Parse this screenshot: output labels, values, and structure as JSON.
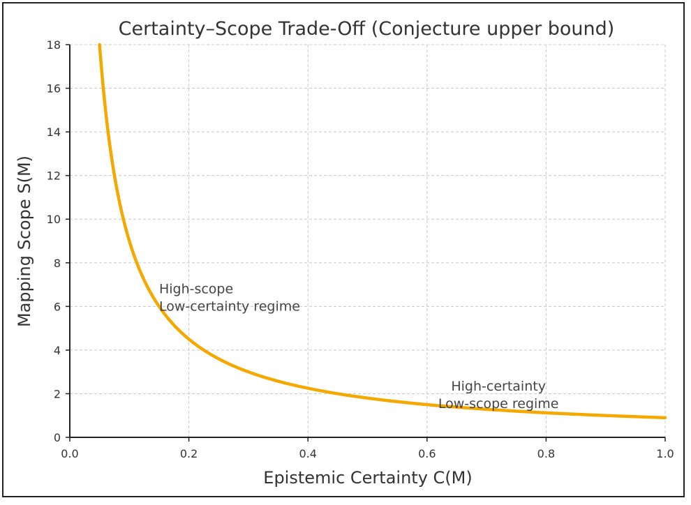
{
  "chart_data": {
    "type": "line",
    "title": "Certainty–Scope Trade-Off (Conjecture upper bound)",
    "xlabel": "Epistemic Certainty  C(M)",
    "ylabel": "Mapping Scope  S(M)",
    "xlim": [
      0.0,
      1.0
    ],
    "ylim": [
      0,
      18
    ],
    "x_ticks": [
      "0.0",
      "0.2",
      "0.4",
      "0.6",
      "0.8",
      "1.0"
    ],
    "y_ticks": [
      "0",
      "2",
      "4",
      "6",
      "8",
      "10",
      "12",
      "14",
      "16",
      "18"
    ],
    "grid": true,
    "series": [
      {
        "color": "#f5a800",
        "x": [
          0.05,
          0.06,
          0.07,
          0.08,
          0.1,
          0.12,
          0.15,
          0.2,
          0.25,
          0.3,
          0.4,
          0.5,
          0.6,
          0.7,
          0.8,
          0.9,
          1.0
        ],
        "y": [
          18.0,
          15.0,
          12.86,
          11.25,
          9.0,
          7.5,
          6.0,
          4.5,
          3.6,
          3.0,
          2.25,
          1.8,
          1.5,
          1.29,
          1.13,
          1.0,
          0.9
        ]
      }
    ],
    "annotations": [
      {
        "lines": [
          "High-scope",
          "Low-certainty regime"
        ],
        "x": 0.15,
        "y": 6.6,
        "align": "left"
      },
      {
        "lines": [
          "High-certainty",
          "Low-scope regime"
        ],
        "x": 0.72,
        "y": 2.15,
        "align": "center"
      }
    ]
  }
}
